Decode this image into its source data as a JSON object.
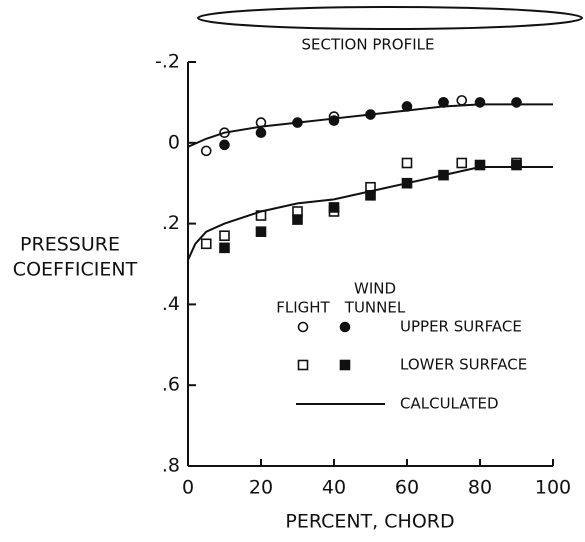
{
  "chart_data": {
    "type": "scatter",
    "title": "SECTION PROFILE",
    "xlabel": "PERCENT, CHORD",
    "ylabel": [
      "PRESSURE",
      "COEFFICIENT"
    ],
    "xlim": [
      0,
      100
    ],
    "xticks": [
      0,
      20,
      40,
      60,
      80,
      100
    ],
    "ylim": [
      -0.2,
      0.8
    ],
    "inverted_y": true,
    "yticks": [
      {
        "value": -0.2,
        "label": "-.2"
      },
      0,
      {
        "value": 0.2,
        "label": ".2"
      },
      {
        "value": 0.4,
        "label": ".4"
      },
      {
        "value": 0.6,
        "label": ".6"
      },
      {
        "value": 0.8,
        "label": ".8"
      }
    ],
    "color": "#111111",
    "series": [
      {
        "marker": "open-circle",
        "x": [
          5,
          10,
          20,
          40,
          70,
          75
        ],
        "values": [
          0.02,
          -0.025,
          -0.05,
          -0.065,
          -0.1,
          -0.105
        ]
      },
      {
        "marker": "filled-circle",
        "x": [
          10,
          20,
          30,
          40,
          50,
          60,
          70,
          80,
          90
        ],
        "values": [
          0.005,
          -0.025,
          -0.05,
          -0.055,
          -0.07,
          -0.09,
          -0.1,
          -0.1,
          -0.1
        ]
      },
      {
        "marker": "open-square",
        "x": [
          5,
          10,
          20,
          30,
          40,
          50,
          60,
          75,
          90
        ],
        "values": [
          0.25,
          0.23,
          0.18,
          0.17,
          0.17,
          0.11,
          0.05,
          0.05,
          0.05
        ]
      },
      {
        "marker": "filled-square",
        "x": [
          10,
          20,
          30,
          40,
          50,
          60,
          70,
          80,
          90
        ],
        "values": [
          0.26,
          0.22,
          0.19,
          0.16,
          0.13,
          0.1,
          0.08,
          0.055,
          0.055
        ]
      },
      {
        "marker": "line",
        "x": [
          0,
          5,
          10,
          20,
          30,
          40,
          50,
          60,
          70,
          80,
          100
        ],
        "values": [
          0.01,
          -0.01,
          -0.025,
          -0.04,
          -0.05,
          -0.06,
          -0.07,
          -0.08,
          -0.09,
          -0.095,
          -0.095
        ]
      },
      {
        "marker": "line",
        "x": [
          0,
          2,
          5,
          10,
          20,
          30,
          40,
          50,
          60,
          70,
          80,
          100
        ],
        "values": [
          0.29,
          0.25,
          0.22,
          0.2,
          0.17,
          0.15,
          0.14,
          0.12,
          0.1,
          0.08,
          0.06,
          0.06
        ]
      }
    ],
    "legend": {
      "headers": [
        [
          "FLIGHT"
        ],
        [
          "WIND",
          "TUNNEL"
        ]
      ],
      "entries": [
        {
          "label": "UPPER SURFACE",
          "markers": [
            "open-circle",
            "filled-circle"
          ]
        },
        {
          "label": "LOWER SURFACE",
          "markers": [
            "open-square",
            "filled-square"
          ]
        },
        {
          "label": "CALCULATED",
          "markers": [
            "line"
          ]
        }
      ]
    }
  }
}
